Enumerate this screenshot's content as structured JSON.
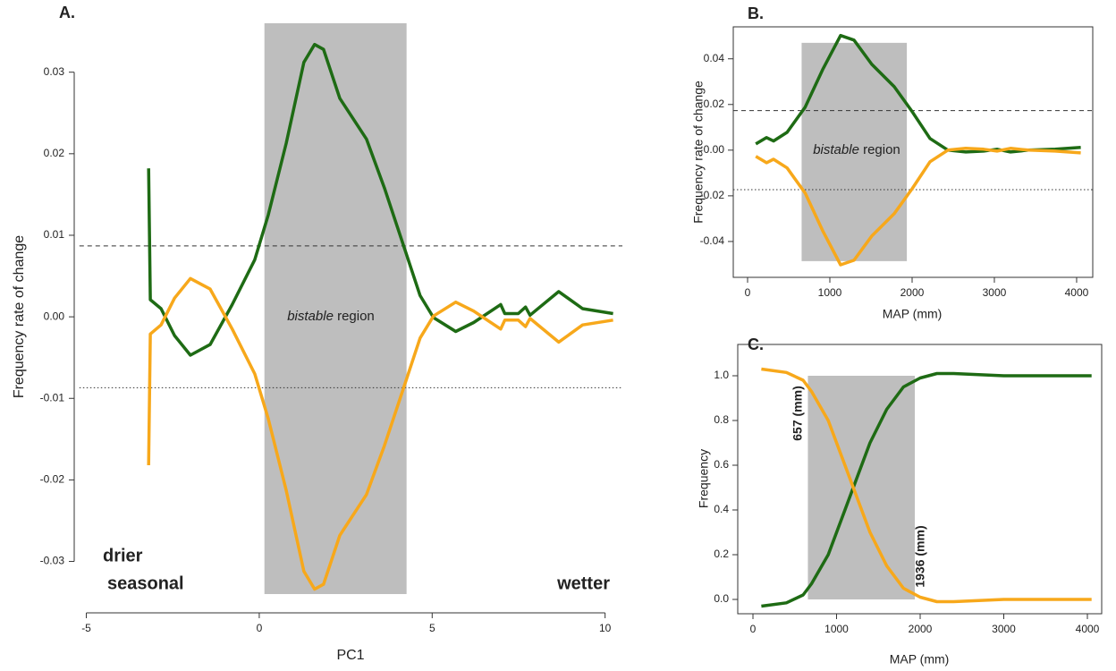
{
  "chart_data": [
    {
      "type": "line",
      "title": "A.",
      "xlabel": "PC1",
      "ylabel": "Frequency rate of change",
      "xlim": [
        -5.2,
        10.5
      ],
      "ylim": [
        -0.034,
        0.036
      ],
      "xticks": [
        -5,
        0,
        5,
        10
      ],
      "yticks": [
        -0.03,
        -0.02,
        -0.01,
        {
          "value": 0,
          "label": "0.00"
        },
        0.01,
        0.02,
        0.03
      ],
      "shade": {
        "x": [
          0.15,
          4.26
        ],
        "y": [
          -0.034,
          0.036
        ],
        "color": "#bebebe",
        "label_italic": "bistable",
        "label": "region"
      },
      "hlines": [
        {
          "value": 0.0087,
          "style": "dashed"
        },
        {
          "value": -0.0087,
          "style": "dotted"
        }
      ],
      "annotations": [
        "drier",
        "seasonal",
        "wetter"
      ],
      "x": [
        -3.2,
        -3.15,
        -2.84,
        -2.45,
        -1.99,
        -1.42,
        -0.78,
        -0.13,
        0.26,
        0.78,
        1.29,
        1.6,
        1.86,
        2.33,
        3.1,
        3.62,
        4.26,
        4.65,
        5.04,
        5.68,
        6.2,
        6.98,
        7.1,
        7.49,
        7.7,
        7.83,
        8.66,
        9.35,
        10.23
      ],
      "series": [
        {
          "color": "#1e6b14",
          "values": [
            0.0182,
            0.0021,
            0.001,
            -0.0023,
            -0.0047,
            -0.0034,
            0.0015,
            0.007,
            0.0125,
            0.0213,
            0.0312,
            0.0334,
            0.0328,
            0.0268,
            0.0218,
            0.0158,
            0.0076,
            0.0026,
            -0.0001,
            -0.0018,
            -0.0007,
            0.0015,
            0.0004,
            0.0004,
            0.0012,
            0.0002,
            0.0031,
            0.001,
            0.0004
          ]
        },
        {
          "color": "#f7a81b",
          "values": [
            -0.0182,
            -0.0021,
            -0.001,
            0.0023,
            0.0047,
            0.0034,
            -0.0015,
            -0.007,
            -0.0125,
            -0.0213,
            -0.0312,
            -0.0334,
            -0.0328,
            -0.0268,
            -0.0218,
            -0.0158,
            -0.0076,
            -0.0026,
            0.0001,
            0.0018,
            0.0007,
            -0.0015,
            -0.0004,
            -0.0004,
            -0.0012,
            -0.0002,
            -0.0031,
            -0.001,
            -0.0004
          ]
        }
      ]
    },
    {
      "type": "line",
      "title": "B.",
      "xlabel": "MAP (mm)",
      "ylabel": "Frequency rate of change",
      "xlim": [
        -174,
        4196
      ],
      "ylim": [
        -0.0557,
        0.054
      ],
      "xticks": [
        0,
        1000,
        2000,
        3000,
        4000
      ],
      "yticks": [
        -0.04,
        -0.02,
        {
          "value": 0,
          "label": "0.00"
        },
        0.02,
        0.04
      ],
      "shade": {
        "x": [
          657,
          1936
        ],
        "y": [
          -0.0486,
          0.047
        ],
        "color": "#bebebe",
        "label_italic": "bistable",
        "label": "region"
      },
      "hlines": [
        {
          "value": 0.0173,
          "style": "dashed"
        },
        {
          "value": -0.0173,
          "style": "dotted"
        }
      ],
      "x": [
        100,
        230,
        315,
        480,
        700,
        913,
        1130,
        1293,
        1510,
        1783,
        2000,
        2217,
        2435,
        2652,
        2870,
        3033,
        3196,
        3413,
        3739,
        4050
      ],
      "series": [
        {
          "color": "#1e6b14",
          "values": [
            0.0027,
            0.0055,
            0.004,
            0.0078,
            0.0188,
            0.0353,
            0.0502,
            0.0482,
            0.0376,
            0.0278,
            0.0169,
            0.0051,
            0,
            -0.0008,
            -0.0004,
            0.0004,
            -0.0008,
            0,
            0.0004,
            0.0012
          ]
        },
        {
          "color": "#f7a81b",
          "values": [
            -0.0027,
            -0.0055,
            -0.004,
            -0.0078,
            -0.0188,
            -0.0353,
            -0.0502,
            -0.0482,
            -0.0376,
            -0.0278,
            -0.0169,
            -0.0051,
            0,
            0.0008,
            0.0004,
            -0.0004,
            0.0008,
            0,
            -0.0004,
            -0.0012
          ]
        }
      ]
    },
    {
      "type": "line",
      "title": "C.",
      "xlabel": "MAP (mm)",
      "ylabel": "Frequency",
      "xlim": [
        -182,
        4171
      ],
      "ylim": [
        -0.064,
        1.14
      ],
      "xticks": [
        0,
        1000,
        2000,
        3000,
        4000
      ],
      "yticks": [
        {
          "value": 0,
          "label": "0.0"
        },
        0.2,
        0.4,
        0.6,
        0.8,
        {
          "value": 1,
          "label": "1.0"
        }
      ],
      "shade": {
        "x": [
          657,
          1936
        ],
        "y": [
          0,
          1
        ],
        "color": "#bebebe"
      },
      "annotations": [
        "657 (mm)",
        "1936 (mm)"
      ],
      "x": [
        100,
        400,
        600,
        700,
        900,
        1100,
        1200,
        1400,
        1600,
        1800,
        2000,
        2200,
        2400,
        3000,
        4050
      ],
      "series": [
        {
          "color": "#1e6b14",
          "values": [
            -0.03,
            -0.015,
            0.02,
            0.07,
            0.2,
            0.4,
            0.5,
            0.7,
            0.85,
            0.95,
            0.99,
            1.01,
            1.01,
            1.0,
            1.0
          ]
        },
        {
          "color": "#f7a81b",
          "values": [
            1.03,
            1.015,
            0.98,
            0.93,
            0.8,
            0.6,
            0.5,
            0.3,
            0.15,
            0.05,
            0.01,
            -0.01,
            -0.01,
            0.0,
            0.0
          ]
        }
      ]
    }
  ]
}
